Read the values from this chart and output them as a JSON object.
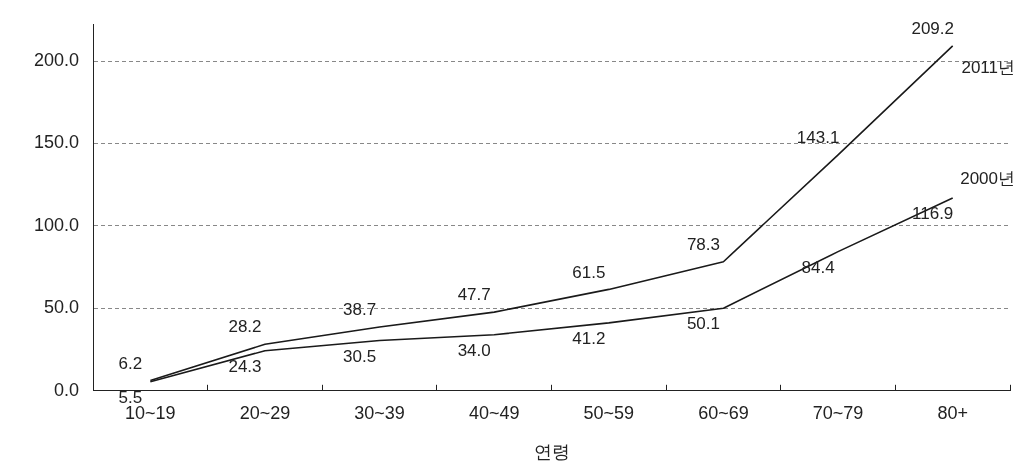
{
  "chart_data": {
    "type": "line",
    "xlabel": "연령",
    "categories": [
      "10~19",
      "20~29",
      "30~39",
      "40~49",
      "50~59",
      "60~69",
      "70~79",
      "80+"
    ],
    "series": [
      {
        "name": "2011년",
        "color": "#1a1a1a",
        "values": [
          6.2,
          28.2,
          38.7,
          47.7,
          61.5,
          78.3,
          143.1,
          209.2
        ],
        "value_labels": [
          "6.2",
          "28.2",
          "38.7",
          "47.7",
          "61.5",
          "78.3",
          "143.1",
          "209.2"
        ]
      },
      {
        "name": "2000년",
        "color": "#1a1a1a",
        "values": [
          5.5,
          24.3,
          30.5,
          34.0,
          41.2,
          50.1,
          84.4,
          116.9
        ],
        "value_labels": [
          "5.5",
          "24.3",
          "30.5",
          "34.0",
          "41.2",
          "50.1",
          "84.4",
          "116.9"
        ]
      }
    ],
    "ylim": [
      0,
      222
    ],
    "yticks": [
      {
        "value": 0,
        "label": "0.0"
      },
      {
        "value": 50,
        "label": "50.0"
      },
      {
        "value": 100,
        "label": "100.0"
      },
      {
        "value": 150,
        "label": "150.0"
      },
      {
        "value": 200,
        "label": "200.0"
      }
    ],
    "grid": "y",
    "legend": false,
    "marker": "none",
    "line_style": "solid"
  }
}
